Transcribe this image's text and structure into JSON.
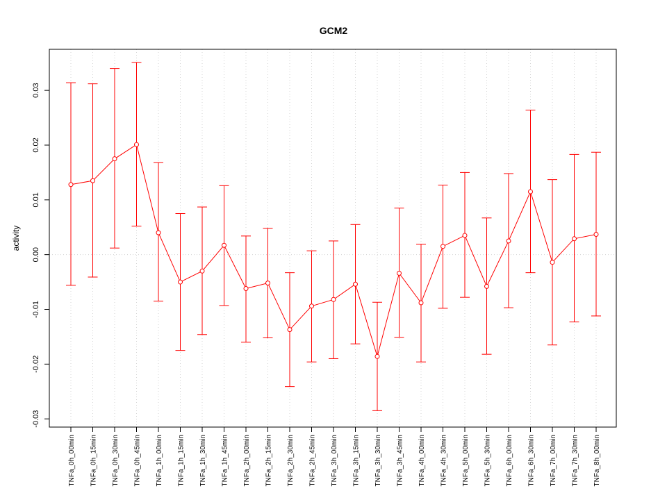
{
  "chart_data": {
    "type": "line",
    "title": "GCM2",
    "xlabel": "",
    "ylabel": "activity",
    "ylim": [
      -0.0315,
      0.0375
    ],
    "yticks": [
      -0.03,
      -0.02,
      -0.01,
      0.0,
      0.01,
      0.02,
      0.03
    ],
    "ytick_labels": [
      "-0.03",
      "-0.02",
      "-0.01",
      "0.00",
      "0.01",
      "0.02",
      "0.03"
    ],
    "grid": true,
    "color": "#ff0000",
    "categories": [
      "TNFa_0h_00min",
      "TNFa_0h_15min",
      "TNFa_0h_30min",
      "TNFa_0h_45min",
      "TNFa_1h_00min",
      "TNFa_1h_15min",
      "TNFa_1h_30min",
      "TNFa_1h_45min",
      "TNFa_2h_00min",
      "TNFa_2h_15min",
      "TNFa_2h_30min",
      "TNFa_2h_45min",
      "TNFa_3h_00min",
      "TNFa_3h_15min",
      "TNFa_3h_30min",
      "TNFa_3h_45min",
      "TNFa_4h_00min",
      "TNFa_4h_30min",
      "TNFa_5h_00min",
      "TNFa_5h_30min",
      "TNFa_6h_00min",
      "TNFa_6h_30min",
      "TNFa_7h_00min",
      "TNFa_7h_30min",
      "TNFa_8h_00min"
    ],
    "values": [
      0.0128,
      0.0135,
      0.0175,
      0.0201,
      0.004,
      -0.005,
      -0.003,
      0.0017,
      -0.0062,
      -0.0052,
      -0.0137,
      -0.0094,
      -0.0082,
      -0.0054,
      -0.0186,
      -0.0034,
      -0.0088,
      0.0015,
      0.0035,
      -0.0058,
      0.0025,
      0.0115,
      -0.0014,
      0.0029,
      0.0037
    ],
    "upper": [
      0.0314,
      0.0312,
      0.034,
      0.0351,
      0.0168,
      0.0075,
      0.0087,
      0.0126,
      0.0034,
      0.0048,
      -0.0033,
      0.0007,
      0.0025,
      0.0055,
      -0.0087,
      0.0085,
      0.0019,
      0.0127,
      0.015,
      0.0067,
      0.0148,
      0.0264,
      0.0137,
      0.0183,
      0.0187
    ],
    "lower": [
      -0.0056,
      -0.0041,
      0.0012,
      0.0052,
      -0.0085,
      -0.0175,
      -0.0146,
      -0.0093,
      -0.016,
      -0.0152,
      -0.0241,
      -0.0196,
      -0.019,
      -0.0163,
      -0.0285,
      -0.0151,
      -0.0196,
      -0.0098,
      -0.0078,
      -0.0182,
      -0.0097,
      -0.0033,
      -0.0165,
      -0.0123,
      -0.0112
    ]
  }
}
